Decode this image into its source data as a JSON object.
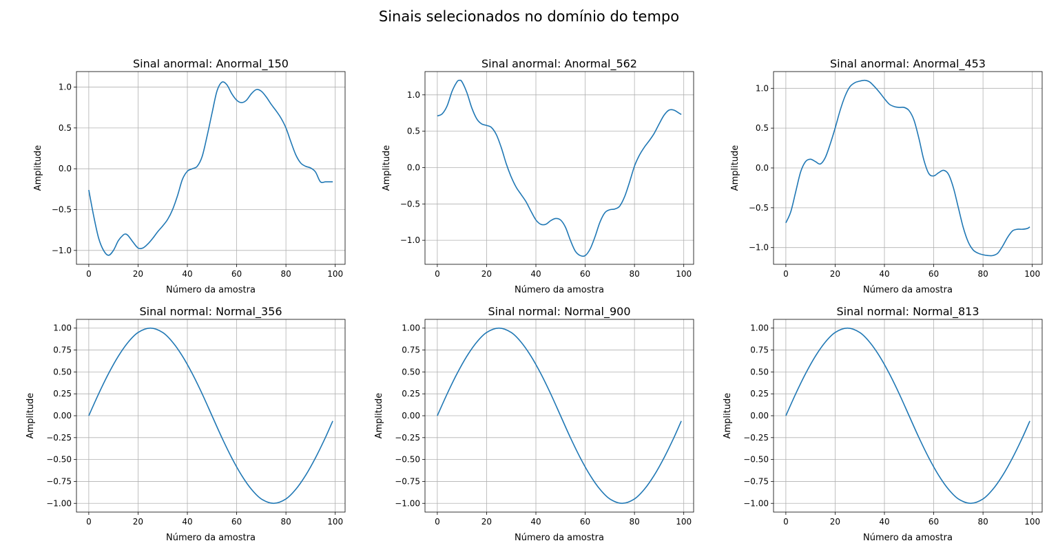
{
  "figure": {
    "suptitle": "Sinais selecionados no domínio do tempo",
    "line_color": "#1f77b4",
    "grid_color": "#b0b0b0"
  },
  "chart_data": [
    {
      "type": "line",
      "title": "Sinal anormal: Anormal_150",
      "xlabel": "Número da amostra",
      "ylabel": "Amplitude",
      "xlim": [
        -5,
        104
      ],
      "ylim": [
        -1.17,
        1.19
      ],
      "xticks": [
        0,
        20,
        40,
        60,
        80,
        100
      ],
      "xtick_labels": [
        "0",
        "20",
        "40",
        "60",
        "80",
        "100"
      ],
      "yticks": [
        -1.0,
        -0.5,
        0.0,
        0.5,
        1.0
      ],
      "ytick_labels": [
        "−1.0",
        "−0.5",
        "0.0",
        "0.5",
        "1.0"
      ],
      "grid": true,
      "series": [
        {
          "x": [
            0,
            2,
            4,
            6,
            8,
            10,
            12,
            14,
            15,
            16,
            18,
            20,
            22,
            24,
            26,
            28,
            30,
            32,
            34,
            36,
            38,
            40,
            42,
            44,
            46,
            48,
            50,
            52,
            54,
            56,
            58,
            60,
            62,
            64,
            66,
            68,
            70,
            72,
            74,
            76,
            78,
            80,
            82,
            84,
            86,
            88,
            90,
            92,
            94,
            96,
            98,
            99
          ],
          "y": [
            -0.26,
            -0.58,
            -0.85,
            -1.0,
            -1.06,
            -1.0,
            -0.88,
            -0.81,
            -0.8,
            -0.82,
            -0.9,
            -0.97,
            -0.97,
            -0.92,
            -0.85,
            -0.77,
            -0.7,
            -0.62,
            -0.5,
            -0.33,
            -0.13,
            -0.03,
            0.0,
            0.03,
            0.15,
            0.4,
            0.68,
            0.95,
            1.06,
            1.03,
            0.92,
            0.84,
            0.81,
            0.84,
            0.92,
            0.97,
            0.95,
            0.88,
            0.79,
            0.71,
            0.62,
            0.5,
            0.33,
            0.17,
            0.07,
            0.03,
            0.01,
            -0.04,
            -0.16,
            -0.16,
            -0.16,
            -0.16
          ]
        }
      ]
    },
    {
      "type": "line",
      "title": "Sinal anormal: Anormal_562",
      "xlabel": "Número da amostra",
      "ylabel": "Amplitude",
      "xlim": [
        -5,
        104
      ],
      "ylim": [
        -1.33,
        1.32
      ],
      "xticks": [
        0,
        20,
        40,
        60,
        80,
        100
      ],
      "xtick_labels": [
        "0",
        "20",
        "40",
        "60",
        "80",
        "100"
      ],
      "yticks": [
        -1.0,
        -0.5,
        0.0,
        0.5,
        1.0
      ],
      "ytick_labels": [
        "−1.0",
        "−0.5",
        "0.0",
        "0.5",
        "1.0"
      ],
      "grid": true,
      "series": [
        {
          "x": [
            0,
            2,
            4,
            6,
            8,
            9,
            10,
            12,
            14,
            16,
            18,
            20,
            22,
            24,
            26,
            28,
            30,
            32,
            34,
            36,
            38,
            40,
            42,
            44,
            46,
            48,
            50,
            52,
            54,
            56,
            58,
            60,
            62,
            64,
            66,
            68,
            70,
            72,
            74,
            76,
            78,
            80,
            82,
            84,
            86,
            88,
            90,
            92,
            94,
            96,
            98,
            99
          ],
          "y": [
            0.71,
            0.74,
            0.85,
            1.05,
            1.18,
            1.2,
            1.18,
            1.03,
            0.82,
            0.67,
            0.6,
            0.58,
            0.55,
            0.45,
            0.27,
            0.05,
            -0.13,
            -0.27,
            -0.37,
            -0.47,
            -0.6,
            -0.72,
            -0.78,
            -0.78,
            -0.73,
            -0.7,
            -0.72,
            -0.82,
            -1.0,
            -1.15,
            -1.21,
            -1.21,
            -1.12,
            -0.95,
            -0.75,
            -0.62,
            -0.58,
            -0.57,
            -0.53,
            -0.4,
            -0.2,
            0.02,
            0.17,
            0.28,
            0.37,
            0.47,
            0.6,
            0.72,
            0.79,
            0.79,
            0.75,
            0.73
          ]
        }
      ]
    },
    {
      "type": "line",
      "title": "Sinal anormal: Anormal_453",
      "xlabel": "Número da amostra",
      "ylabel": "Amplitude",
      "xlim": [
        -5,
        104
      ],
      "ylim": [
        -1.21,
        1.21
      ],
      "xticks": [
        0,
        20,
        40,
        60,
        80,
        100
      ],
      "xtick_labels": [
        "0",
        "20",
        "40",
        "60",
        "80",
        "100"
      ],
      "yticks": [
        -1.0,
        -0.5,
        0.0,
        0.5,
        1.0
      ],
      "ytick_labels": [
        "−1.0",
        "−0.5",
        "0.0",
        "0.5",
        "1.0"
      ],
      "grid": true,
      "series": [
        {
          "x": [
            0,
            2,
            4,
            6,
            8,
            10,
            12,
            14,
            16,
            18,
            20,
            22,
            24,
            26,
            28,
            30,
            32,
            34,
            36,
            38,
            40,
            42,
            44,
            46,
            48,
            50,
            52,
            54,
            56,
            58,
            60,
            62,
            64,
            66,
            68,
            70,
            72,
            74,
            76,
            78,
            80,
            82,
            84,
            86,
            88,
            90,
            92,
            94,
            96,
            98,
            99
          ],
          "y": [
            -0.69,
            -0.55,
            -0.3,
            -0.05,
            0.08,
            0.11,
            0.08,
            0.05,
            0.13,
            0.3,
            0.5,
            0.72,
            0.9,
            1.02,
            1.07,
            1.09,
            1.1,
            1.08,
            1.02,
            0.95,
            0.87,
            0.8,
            0.77,
            0.76,
            0.76,
            0.72,
            0.6,
            0.37,
            0.1,
            -0.07,
            -0.1,
            -0.06,
            -0.03,
            -0.08,
            -0.25,
            -0.5,
            -0.75,
            -0.93,
            -1.03,
            -1.07,
            -1.09,
            -1.1,
            -1.1,
            -1.07,
            -0.98,
            -0.87,
            -0.79,
            -0.77,
            -0.77,
            -0.76,
            -0.74
          ]
        }
      ]
    },
    {
      "type": "line",
      "title": "Sinal normal: Normal_356",
      "xlabel": "Número da amostra",
      "ylabel": "Amplitude",
      "xlim": [
        -5,
        104
      ],
      "ylim": [
        -1.1,
        1.1
      ],
      "xticks": [
        0,
        20,
        40,
        60,
        80,
        100
      ],
      "xtick_labels": [
        "0",
        "20",
        "40",
        "60",
        "80",
        "100"
      ],
      "yticks": [
        -1.0,
        -0.75,
        -0.5,
        -0.25,
        0.0,
        0.25,
        0.5,
        0.75,
        1.0
      ],
      "ytick_labels": [
        "−1.00",
        "−0.75",
        "−0.50",
        "−0.25",
        "0.00",
        "0.25",
        "0.50",
        "0.75",
        "1.00"
      ],
      "grid": true,
      "series": [
        {
          "x": [
            0,
            4,
            8,
            12,
            16,
            20,
            25,
            30,
            34,
            38,
            42,
            46,
            50,
            54,
            58,
            62,
            66,
            70,
            75,
            80,
            84,
            88,
            92,
            96,
            99
          ],
          "y": [
            0.0,
            0.25,
            0.48,
            0.68,
            0.84,
            0.95,
            1.0,
            0.95,
            0.84,
            0.68,
            0.48,
            0.25,
            0.0,
            -0.25,
            -0.48,
            -0.68,
            -0.84,
            -0.95,
            -1.0,
            -0.95,
            -0.84,
            -0.68,
            -0.48,
            -0.25,
            -0.06
          ]
        }
      ]
    },
    {
      "type": "line",
      "title": "Sinal normal: Normal_900",
      "xlabel": "Número da amostra",
      "ylabel": "Amplitude",
      "xlim": [
        -5,
        104
      ],
      "ylim": [
        -1.1,
        1.1
      ],
      "xticks": [
        0,
        20,
        40,
        60,
        80,
        100
      ],
      "xtick_labels": [
        "0",
        "20",
        "40",
        "60",
        "80",
        "100"
      ],
      "yticks": [
        -1.0,
        -0.75,
        -0.5,
        -0.25,
        0.0,
        0.25,
        0.5,
        0.75,
        1.0
      ],
      "ytick_labels": [
        "−1.00",
        "−0.75",
        "−0.50",
        "−0.25",
        "0.00",
        "0.25",
        "0.50",
        "0.75",
        "1.00"
      ],
      "grid": true,
      "series": [
        {
          "x": [
            0,
            4,
            8,
            12,
            16,
            20,
            25,
            30,
            34,
            38,
            42,
            46,
            50,
            54,
            58,
            62,
            66,
            70,
            75,
            80,
            84,
            88,
            92,
            96,
            99
          ],
          "y": [
            0.0,
            0.25,
            0.48,
            0.68,
            0.84,
            0.95,
            1.0,
            0.95,
            0.84,
            0.68,
            0.48,
            0.25,
            0.0,
            -0.25,
            -0.48,
            -0.68,
            -0.84,
            -0.95,
            -1.0,
            -0.95,
            -0.84,
            -0.68,
            -0.48,
            -0.25,
            -0.06
          ]
        }
      ]
    },
    {
      "type": "line",
      "title": "Sinal normal: Normal_813",
      "xlabel": "Número da amostra",
      "ylabel": "Amplitude",
      "xlim": [
        -5,
        104
      ],
      "ylim": [
        -1.1,
        1.1
      ],
      "xticks": [
        0,
        20,
        40,
        60,
        80,
        100
      ],
      "xtick_labels": [
        "0",
        "20",
        "40",
        "60",
        "80",
        "100"
      ],
      "yticks": [
        -1.0,
        -0.75,
        -0.5,
        -0.25,
        0.0,
        0.25,
        0.5,
        0.75,
        1.0
      ],
      "ytick_labels": [
        "−1.00",
        "−0.75",
        "−0.50",
        "−0.25",
        "0.00",
        "0.25",
        "0.50",
        "0.75",
        "1.00"
      ],
      "grid": true,
      "series": [
        {
          "x": [
            0,
            4,
            8,
            12,
            16,
            20,
            25,
            30,
            34,
            38,
            42,
            46,
            50,
            54,
            58,
            62,
            66,
            70,
            75,
            80,
            84,
            88,
            92,
            96,
            99
          ],
          "y": [
            0.0,
            0.25,
            0.48,
            0.68,
            0.84,
            0.95,
            1.0,
            0.95,
            0.84,
            0.68,
            0.48,
            0.25,
            0.0,
            -0.25,
            -0.48,
            -0.68,
            -0.84,
            -0.95,
            -1.0,
            -0.95,
            -0.84,
            -0.68,
            -0.48,
            -0.25,
            -0.06
          ]
        }
      ]
    }
  ]
}
